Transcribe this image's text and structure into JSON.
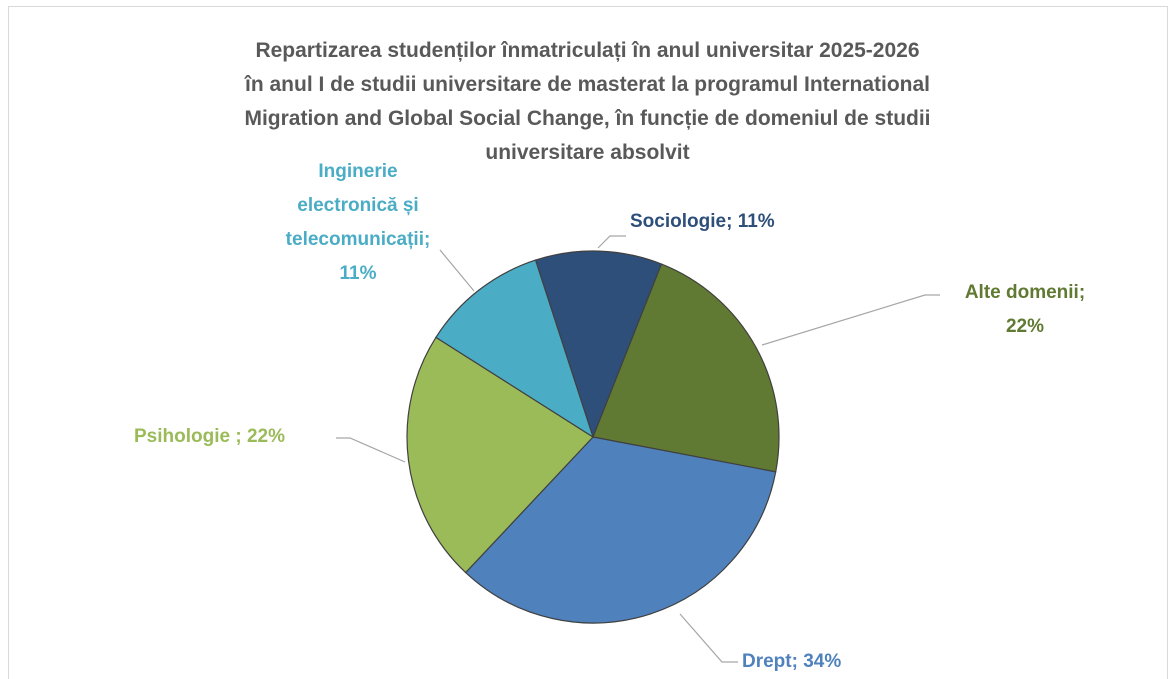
{
  "chart_data": {
    "type": "pie",
    "title": "Repartizarea studenților înmatriculați în anul universitar 2025-2026\nîn anul I de studii universitare de masterat la programul International\nMigration and Global Social Change, în funcție de domeniul de studii\nuniversitare absolvit",
    "categories": [
      "Sociologie;",
      "Alte domenii;",
      "Drept;",
      "Psihologie ;",
      "Inginerie\nelectronică și\ntelecomunicații;"
    ],
    "values": [
      11,
      22,
      34,
      22,
      11
    ],
    "value_labels": [
      "11%",
      "22%",
      "34%",
      "22%",
      "11%"
    ],
    "colors": [
      "#2e4f7a",
      "#617a33",
      "#4f81bd",
      "#9bbb59",
      "#4bacc6"
    ]
  }
}
